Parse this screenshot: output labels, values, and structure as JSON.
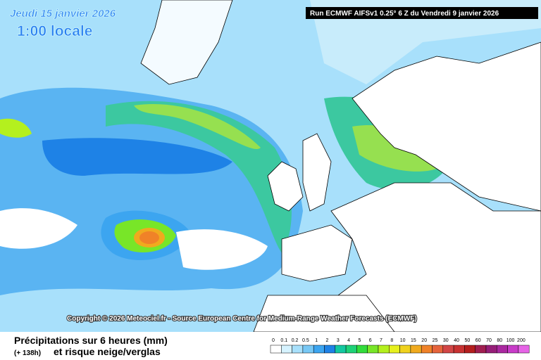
{
  "header": {
    "date": "Jeudi 15 janvier 2026",
    "time": "1:00 locale",
    "run": "Run ECMWF AIFSv1 0.25° 6 Z du Vendredi 9 janvier 2026"
  },
  "copyright": "Copyright © 2026 Meteociel.fr - Source European Centre for Medium-Range Weather Forecasts (ECMWF)",
  "footer": {
    "title": "Précipitations sur 6 heures (mm)",
    "lead": "(+ 138h)",
    "subtitle": "et risque neige/verglas"
  },
  "legend": {
    "labels": [
      0,
      0.1,
      0.2,
      0.5,
      1,
      2,
      3,
      4,
      5,
      6,
      7,
      8,
      10,
      15,
      20,
      25,
      30,
      40,
      50,
      60,
      70,
      80,
      100,
      200
    ],
    "colors": [
      "#ffffff",
      "#d6f3ff",
      "#a8e0fb",
      "#78c8f5",
      "#3ca5f0",
      "#1e82e6",
      "#14c8a0",
      "#1ed278",
      "#32dc3c",
      "#78e628",
      "#b4f01e",
      "#e6f01e",
      "#f0d21e",
      "#f0aa1e",
      "#f08228",
      "#e6643c",
      "#d24646",
      "#c83232",
      "#b41e1e",
      "#a01e50",
      "#961e78",
      "#aa28a0",
      "#c83cc8",
      "#e664e6"
    ]
  }
}
